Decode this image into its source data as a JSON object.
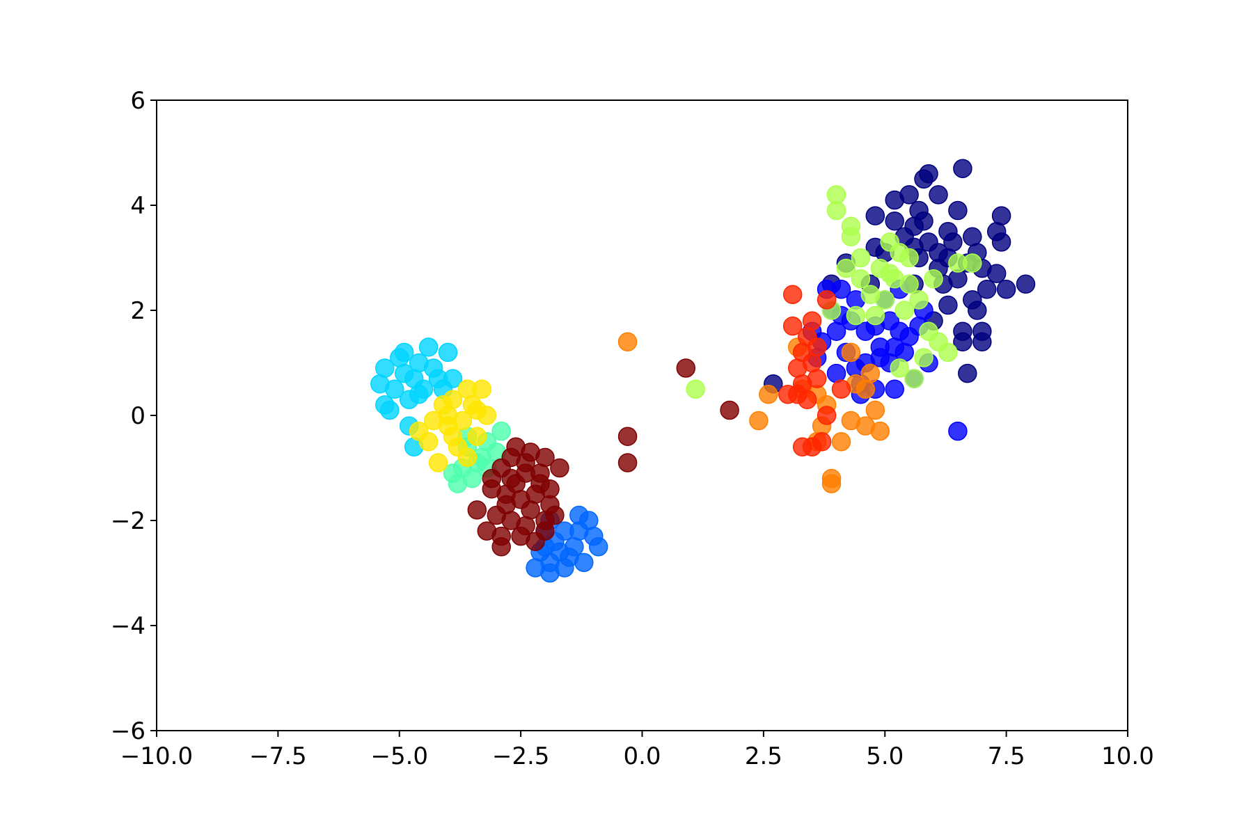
{
  "chart_data": {
    "type": "scatter",
    "title": "",
    "xlabel": "",
    "ylabel": "",
    "xlim": [
      -10,
      10
    ],
    "ylim": [
      -6,
      6
    ],
    "grid": false,
    "x_ticks": [
      -10,
      -7.5,
      -5,
      -2.5,
      0,
      2.5,
      5,
      7.5,
      10
    ],
    "x_tick_labels": [
      "−10.0",
      "−7.5",
      "−5.0",
      "−2.5",
      "0.0",
      "2.5",
      "5.0",
      "7.5",
      "10.0"
    ],
    "y_ticks": [
      -6,
      -4,
      -2,
      0,
      2,
      4,
      6
    ],
    "y_tick_labels": [
      "−6",
      "−4",
      "−2",
      "0",
      "2",
      "4",
      "6"
    ],
    "series": [
      {
        "color": "#00007f",
        "points": [
          [
            5.8,
            4.5
          ],
          [
            5.9,
            4.6
          ],
          [
            6.6,
            4.7
          ],
          [
            5.5,
            4.2
          ],
          [
            6.1,
            4.2
          ],
          [
            5.2,
            4.1
          ],
          [
            5.7,
            3.9
          ],
          [
            6.5,
            3.9
          ],
          [
            7.4,
            3.8
          ],
          [
            4.8,
            3.8
          ],
          [
            5.2,
            3.7
          ],
          [
            5.6,
            3.6
          ],
          [
            6.3,
            3.5
          ],
          [
            6.8,
            3.4
          ],
          [
            7.3,
            3.5
          ],
          [
            7.4,
            3.3
          ],
          [
            5.9,
            3.3
          ],
          [
            6.1,
            3.1
          ],
          [
            6.4,
            3.3
          ],
          [
            6.9,
            3.1
          ],
          [
            4.8,
            3.2
          ],
          [
            5.0,
            3.1
          ],
          [
            5.4,
            3.4
          ],
          [
            6.7,
            2.9
          ],
          [
            7.0,
            2.8
          ],
          [
            7.9,
            2.5
          ],
          [
            7.3,
            2.7
          ],
          [
            7.5,
            2.4
          ],
          [
            7.1,
            2.4
          ],
          [
            6.8,
            2.2
          ],
          [
            6.3,
            2.1
          ],
          [
            6.0,
            1.8
          ],
          [
            6.6,
            1.6
          ],
          [
            7.0,
            1.4
          ],
          [
            6.6,
            1.4
          ],
          [
            4.7,
            2.5
          ],
          [
            4.2,
            2.9
          ],
          [
            6.2,
            2.5
          ],
          [
            5.6,
            2.5
          ],
          [
            5.7,
            3.0
          ],
          [
            6.5,
            2.6
          ],
          [
            6.9,
            2.0
          ],
          [
            7.0,
            1.6
          ],
          [
            6.7,
            0.8
          ],
          [
            2.7,
            0.6
          ],
          [
            3.9,
            2.5
          ],
          [
            6.1,
            2.8
          ],
          [
            6.3,
            3.0
          ],
          [
            5.8,
            3.7
          ],
          [
            5.6,
            3.2
          ]
        ]
      },
      {
        "color": "#0000ff",
        "points": [
          [
            3.8,
            2.4
          ],
          [
            4.1,
            2.4
          ],
          [
            3.9,
            2.0
          ],
          [
            4.3,
            1.8
          ],
          [
            4.0,
            1.6
          ],
          [
            4.6,
            1.6
          ],
          [
            4.8,
            1.7
          ],
          [
            5.1,
            1.8
          ],
          [
            5.3,
            1.6
          ],
          [
            5.5,
            1.5
          ],
          [
            4.9,
            1.3
          ],
          [
            5.1,
            1.0
          ],
          [
            5.4,
            1.2
          ],
          [
            4.6,
            1.0
          ],
          [
            4.4,
            0.9
          ],
          [
            4.2,
            1.2
          ],
          [
            3.7,
            1.4
          ],
          [
            3.5,
            1.6
          ],
          [
            3.6,
            1.1
          ],
          [
            4.0,
            0.8
          ],
          [
            4.5,
            0.6
          ],
          [
            4.8,
            0.5
          ],
          [
            5.2,
            0.5
          ],
          [
            5.6,
            0.7
          ],
          [
            5.0,
            2.2
          ],
          [
            5.3,
            2.4
          ],
          [
            5.8,
            2.0
          ],
          [
            4.4,
            2.2
          ],
          [
            4.9,
            1.1
          ],
          [
            5.2,
            1.3
          ],
          [
            6.5,
            -0.3
          ],
          [
            4.5,
            0.4
          ],
          [
            5.7,
            1.7
          ],
          [
            5.9,
            1.0
          ],
          [
            4.1,
            1.9
          ]
        ]
      },
      {
        "color": "#0066ff",
        "points": [
          [
            -1.9,
            -2.0
          ],
          [
            -1.6,
            -2.2
          ],
          [
            -1.3,
            -1.9
          ],
          [
            -1.1,
            -2.0
          ],
          [
            -1.8,
            -2.4
          ],
          [
            -1.4,
            -2.5
          ],
          [
            -1.0,
            -2.3
          ],
          [
            -0.9,
            -2.5
          ],
          [
            -1.5,
            -2.7
          ],
          [
            -1.2,
            -2.8
          ],
          [
            -1.9,
            -2.8
          ],
          [
            -2.1,
            -2.6
          ],
          [
            -2.2,
            -2.9
          ],
          [
            -1.9,
            -3.0
          ],
          [
            -1.6,
            -2.9
          ],
          [
            -2.0,
            -2.2
          ],
          [
            -1.7,
            -2.6
          ],
          [
            -1.3,
            -2.2
          ],
          [
            -2.0,
            -2.5
          ]
        ]
      },
      {
        "color": "#00d4ff",
        "points": [
          [
            -5.0,
            1.1
          ],
          [
            -4.9,
            1.2
          ],
          [
            -4.6,
            1.0
          ],
          [
            -4.4,
            1.3
          ],
          [
            -4.0,
            1.2
          ],
          [
            -4.3,
            0.9
          ],
          [
            -4.7,
            0.7
          ],
          [
            -5.3,
            0.9
          ],
          [
            -5.4,
            0.6
          ],
          [
            -5.1,
            0.5
          ],
          [
            -4.5,
            0.5
          ],
          [
            -4.2,
            0.7
          ],
          [
            -3.9,
            0.7
          ],
          [
            -4.8,
            0.3
          ],
          [
            -5.3,
            0.2
          ],
          [
            -5.2,
            0.1
          ],
          [
            -4.6,
            0.4
          ],
          [
            -4.9,
            0.8
          ],
          [
            -4.1,
            0.5
          ],
          [
            -4.8,
            -0.2
          ],
          [
            -4.7,
            -0.6
          ]
        ]
      },
      {
        "color": "#4dffad",
        "points": [
          [
            -3.6,
            -0.6
          ],
          [
            -3.4,
            -0.9
          ],
          [
            -3.2,
            -1.0
          ],
          [
            -3.0,
            -0.7
          ],
          [
            -2.9,
            -0.3
          ],
          [
            -3.7,
            -1.0
          ],
          [
            -3.5,
            -1.2
          ],
          [
            -3.8,
            -1.3
          ],
          [
            -3.2,
            -0.5
          ],
          [
            -3.3,
            -0.8
          ],
          [
            -3.6,
            -0.4
          ],
          [
            -3.9,
            -1.1
          ]
        ]
      },
      {
        "color": "#adff4d",
        "points": [
          [
            4.0,
            4.2
          ],
          [
            4.0,
            3.9
          ],
          [
            4.3,
            3.6
          ],
          [
            4.3,
            3.4
          ],
          [
            5.1,
            3.3
          ],
          [
            5.3,
            3.1
          ],
          [
            5.5,
            3.0
          ],
          [
            4.5,
            3.0
          ],
          [
            4.2,
            2.8
          ],
          [
            4.9,
            2.8
          ],
          [
            5.2,
            2.6
          ],
          [
            5.5,
            2.5
          ],
          [
            6.0,
            2.6
          ],
          [
            6.5,
            2.9
          ],
          [
            6.8,
            2.9
          ],
          [
            4.7,
            2.3
          ],
          [
            5.0,
            2.2
          ],
          [
            5.4,
            2.0
          ],
          [
            5.7,
            2.2
          ],
          [
            4.8,
            1.9
          ],
          [
            4.4,
            1.9
          ],
          [
            3.9,
            2.0
          ],
          [
            5.9,
            1.6
          ],
          [
            6.1,
            1.4
          ],
          [
            6.3,
            1.2
          ],
          [
            5.8,
            1.1
          ],
          [
            5.3,
            0.9
          ],
          [
            5.6,
            0.7
          ],
          [
            1.1,
            0.5
          ],
          [
            4.5,
            2.6
          ],
          [
            5.1,
            2.7
          ]
        ]
      },
      {
        "color": "#ffe600",
        "points": [
          [
            -3.9,
            0.3
          ],
          [
            -3.6,
            0.5
          ],
          [
            -3.3,
            0.5
          ],
          [
            -3.5,
            0.2
          ],
          [
            -4.1,
            0.2
          ],
          [
            -4.3,
            -0.1
          ],
          [
            -4.0,
            -0.2
          ],
          [
            -3.7,
            -0.1
          ],
          [
            -3.2,
            0.0
          ],
          [
            -4.6,
            -0.3
          ],
          [
            -4.4,
            -0.5
          ],
          [
            -4.2,
            -0.9
          ],
          [
            -3.8,
            -0.6
          ],
          [
            -3.4,
            -0.4
          ],
          [
            -3.6,
            -0.8
          ],
          [
            -3.9,
            -0.4
          ],
          [
            -4.0,
            0.0
          ],
          [
            -3.4,
            0.1
          ]
        ]
      },
      {
        "color": "#ff7f00",
        "points": [
          [
            -0.3,
            1.4
          ],
          [
            2.6,
            0.4
          ],
          [
            2.4,
            -0.1
          ],
          [
            3.3,
            0.5
          ],
          [
            3.6,
            0.4
          ],
          [
            3.8,
            0.2
          ],
          [
            4.3,
            -0.1
          ],
          [
            4.6,
            -0.2
          ],
          [
            4.8,
            0.1
          ],
          [
            4.9,
            -0.3
          ],
          [
            3.7,
            -0.2
          ],
          [
            3.6,
            -0.5
          ],
          [
            4.1,
            -0.5
          ],
          [
            3.9,
            -1.2
          ],
          [
            3.9,
            -1.3
          ],
          [
            4.4,
            0.6
          ],
          [
            4.7,
            0.8
          ],
          [
            3.2,
            1.3
          ],
          [
            4.3,
            1.2
          ],
          [
            4.6,
            0.5
          ]
        ]
      },
      {
        "color": "#ff2600",
        "points": [
          [
            3.1,
            2.3
          ],
          [
            3.1,
            1.7
          ],
          [
            3.5,
            1.8
          ],
          [
            3.4,
            1.5
          ],
          [
            3.3,
            1.2
          ],
          [
            3.5,
            1.0
          ],
          [
            3.2,
            0.9
          ],
          [
            3.6,
            0.7
          ],
          [
            3.3,
            0.6
          ],
          [
            3.0,
            0.4
          ],
          [
            3.2,
            0.4
          ],
          [
            3.4,
            0.3
          ],
          [
            3.8,
            0.0
          ],
          [
            4.1,
            0.5
          ],
          [
            3.7,
            -0.5
          ],
          [
            3.3,
            -0.6
          ],
          [
            3.5,
            -0.6
          ],
          [
            3.8,
            2.2
          ],
          [
            3.6,
            1.3
          ]
        ]
      },
      {
        "color": "#7f0000",
        "points": [
          [
            -2.6,
            -0.6
          ],
          [
            -2.3,
            -0.7
          ],
          [
            -2.0,
            -0.8
          ],
          [
            -1.7,
            -1.0
          ],
          [
            -2.9,
            -1.0
          ],
          [
            -2.7,
            -1.2
          ],
          [
            -2.4,
            -1.1
          ],
          [
            -2.1,
            -1.3
          ],
          [
            -3.1,
            -1.4
          ],
          [
            -2.8,
            -1.5
          ],
          [
            -2.5,
            -1.6
          ],
          [
            -2.2,
            -1.5
          ],
          [
            -1.9,
            -1.7
          ],
          [
            -3.4,
            -1.8
          ],
          [
            -3.0,
            -1.9
          ],
          [
            -2.7,
            -2.0
          ],
          [
            -2.4,
            -2.1
          ],
          [
            -2.0,
            -2.2
          ],
          [
            -1.8,
            -1.9
          ],
          [
            -3.2,
            -2.2
          ],
          [
            -2.9,
            -2.3
          ],
          [
            -2.5,
            -2.3
          ],
          [
            -2.2,
            -2.4
          ],
          [
            -2.9,
            -2.5
          ],
          [
            -2.6,
            -1.3
          ],
          [
            -2.3,
            -1.8
          ],
          [
            -2.8,
            -1.7
          ],
          [
            -2.4,
            -0.9
          ],
          [
            -2.1,
            -1.1
          ],
          [
            -2.7,
            -0.8
          ],
          [
            -0.3,
            -0.4
          ],
          [
            -0.3,
            -0.9
          ],
          [
            0.9,
            0.9
          ],
          [
            1.8,
            0.1
          ],
          [
            -3.1,
            -1.2
          ],
          [
            -2.0,
            -2.0
          ],
          [
            -1.9,
            -1.4
          ]
        ]
      }
    ]
  }
}
